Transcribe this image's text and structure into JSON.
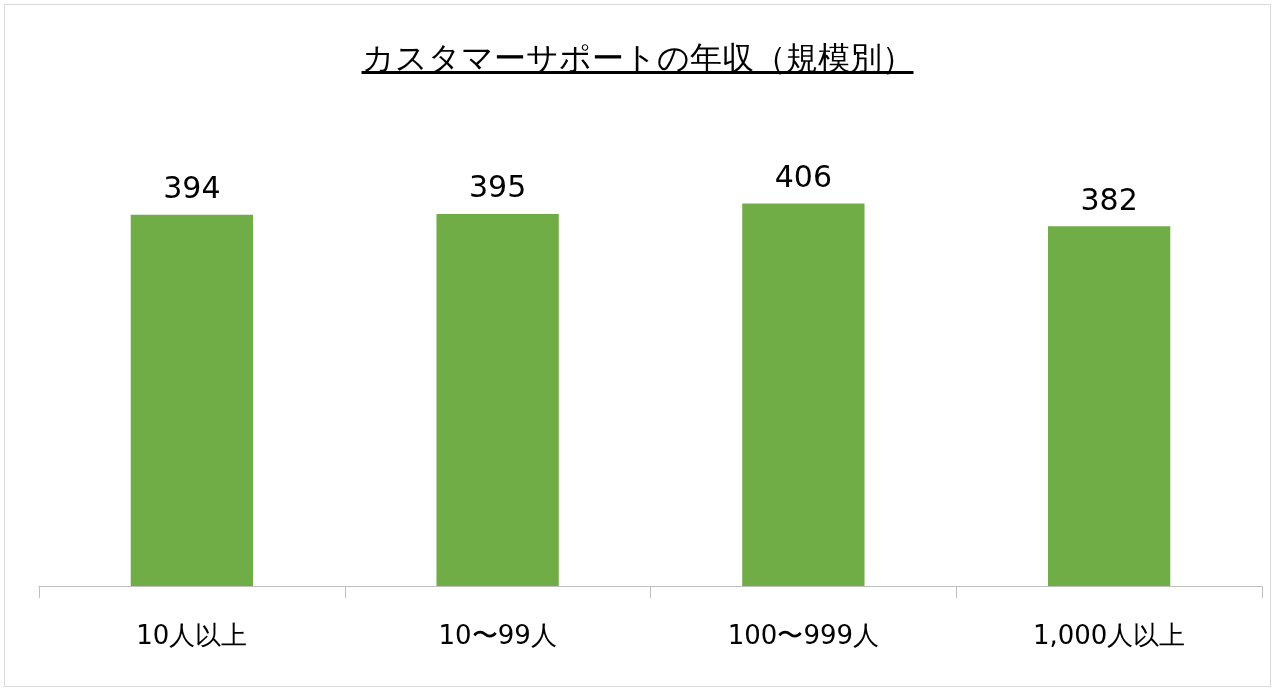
{
  "chart_data": {
    "type": "bar",
    "title": "カスタマーサポートの年収（規模別）",
    "categories": [
      "10人以上",
      "10〜99人",
      "100〜999人",
      "1,000人以上"
    ],
    "values": [
      394,
      395,
      406,
      382
    ],
    "color": "#70ad47",
    "data_labels": true
  }
}
